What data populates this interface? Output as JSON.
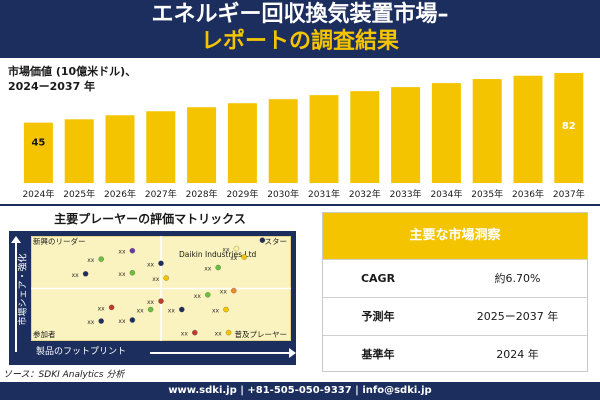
{
  "header": {
    "title_line1": "エネルギー回収換気装置市場–",
    "title_line2": "レポートの調査結果"
  },
  "market": {
    "label_line1": "市場価値 (10億米ドル)、",
    "label_line2": "2024ー2037 年"
  },
  "chart_data": {
    "type": "bar",
    "categories": [
      "2024年",
      "2025年",
      "2026年",
      "2027年",
      "2028年",
      "2029年",
      "2030年",
      "2031年",
      "2032年",
      "2033年",
      "2034年",
      "2035年",
      "2036年",
      "2037年"
    ],
    "values": [
      45,
      47.5,
      50.5,
      53.5,
      56.5,
      59.5,
      62.5,
      65.5,
      68.5,
      71.5,
      74.5,
      77.5,
      80,
      82
    ],
    "data_labels": [
      {
        "index": 0,
        "text": "45"
      },
      {
        "index": 13,
        "text": "82"
      }
    ],
    "bar_color": "#f5c400",
    "ylim": [
      0,
      85
    ]
  },
  "matrix": {
    "title": "主要プレーヤーの評価マトリックス",
    "quadrants": {
      "top_left": "新興のリーダー",
      "top_right": "スター",
      "bottom_left": "参加者",
      "bottom_right": "普及プレーヤー"
    },
    "highlight_label": "Daikin Industries Ltd",
    "y_axis_label": "市場シェア・強化",
    "x_axis_label": "製品のフットプリント",
    "points": [
      {
        "x": 0.39,
        "y": 0.86,
        "label": "xx",
        "color": "#6a3aa0"
      },
      {
        "x": 0.27,
        "y": 0.78,
        "label": "xx",
        "color": "#6bbf3a"
      },
      {
        "x": 0.5,
        "y": 0.74,
        "label": "xx",
        "color": "#1c2e5e"
      },
      {
        "x": 0.21,
        "y": 0.64,
        "label": "xx",
        "color": "#1c2e5e"
      },
      {
        "x": 0.39,
        "y": 0.65,
        "label": "xx",
        "color": "#6bbf3a"
      },
      {
        "x": 0.52,
        "y": 0.6,
        "label": "xx",
        "color": "#f5c400"
      },
      {
        "x": 0.79,
        "y": 0.88,
        "label": "xx",
        "color": "#fff3a0"
      },
      {
        "x": 0.82,
        "y": 0.8,
        "label": "xx",
        "color": "#f5c400"
      },
      {
        "x": 0.72,
        "y": 0.7,
        "label": "xx",
        "color": "#6bbf3a"
      },
      {
        "x": 0.89,
        "y": 0.96,
        "label": "",
        "color": "#1c2e5e"
      },
      {
        "x": 0.78,
        "y": 0.48,
        "label": "xx",
        "color": "#e8892a"
      },
      {
        "x": 0.68,
        "y": 0.44,
        "label": "xx",
        "color": "#6bbf3a"
      },
      {
        "x": 0.31,
        "y": 0.32,
        "label": "xx",
        "color": "#c0392b"
      },
      {
        "x": 0.5,
        "y": 0.38,
        "label": "xx",
        "color": "#c0392b"
      },
      {
        "x": 0.58,
        "y": 0.3,
        "label": "xx",
        "color": "#1c2e5e"
      },
      {
        "x": 0.75,
        "y": 0.3,
        "label": "xx",
        "color": "#f5c400"
      },
      {
        "x": 0.46,
        "y": 0.3,
        "label": "xx",
        "color": "#6bbf3a"
      },
      {
        "x": 0.39,
        "y": 0.2,
        "label": "xx",
        "color": "#1c2e5e"
      },
      {
        "x": 0.27,
        "y": 0.19,
        "label": "xx",
        "color": "#1c2e5e"
      },
      {
        "x": 0.63,
        "y": 0.08,
        "label": "xx",
        "color": "#c0392b"
      },
      {
        "x": 0.76,
        "y": 0.08,
        "label": "xx",
        "color": "#f5c400"
      }
    ]
  },
  "source": "ソース：SDKI Analytics 分析",
  "insights": {
    "title": "主要な市場洞察",
    "rows": [
      {
        "key": "CAGR",
        "value": "約6.70%"
      },
      {
        "key": "予測年",
        "value": "2025ー2037 年"
      },
      {
        "key": "基準年",
        "value": "2024 年"
      }
    ]
  },
  "footer": "www.sdki.jp | +81-505-050-9337 | info@sdki.jp",
  "colors": {
    "navy": "#1c2e5e",
    "accent": "#f5c400"
  }
}
